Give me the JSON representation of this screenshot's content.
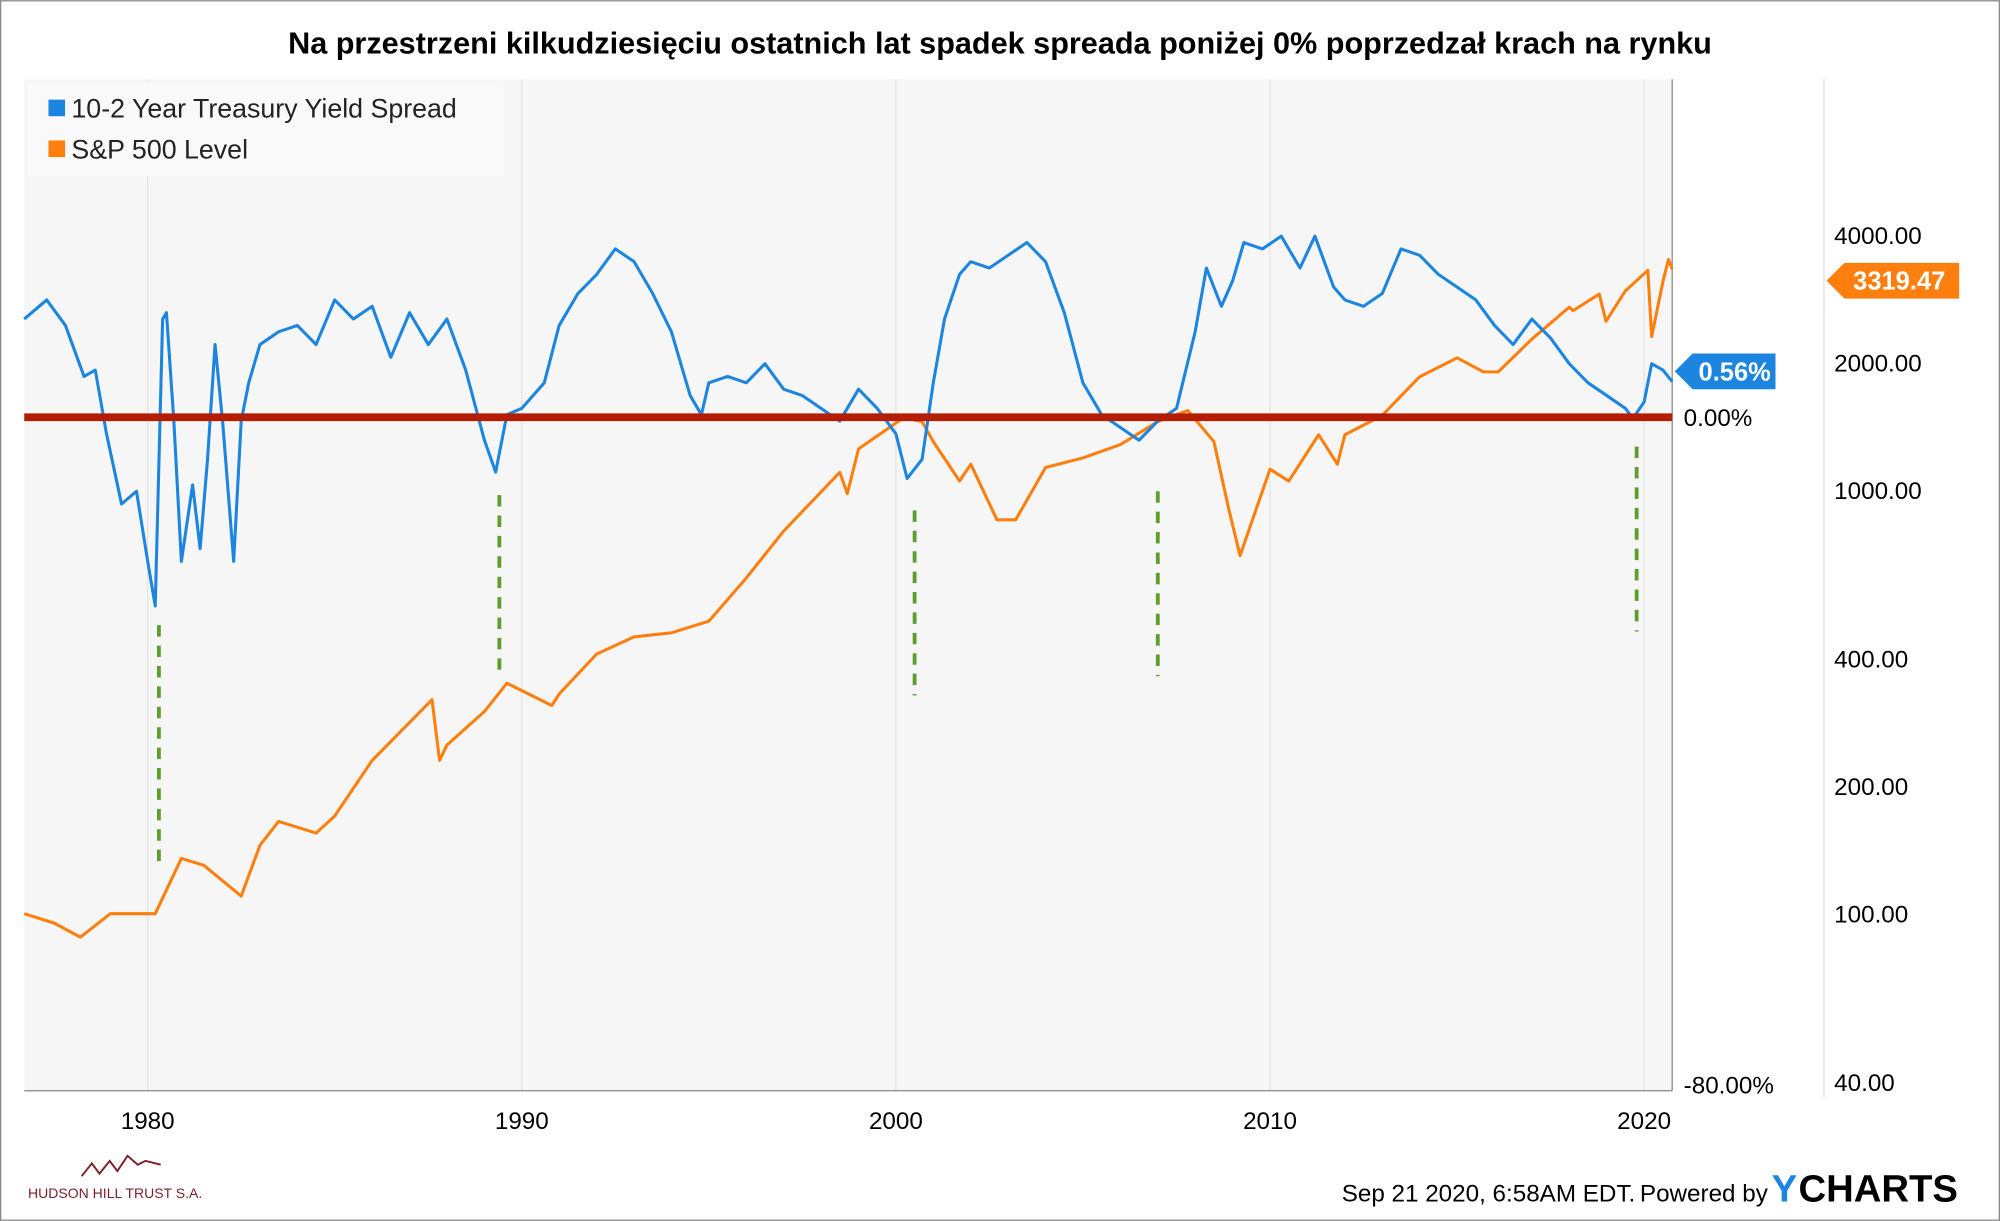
{
  "chart_data": {
    "type": "line",
    "title": "Na przestrzeni kilkudziesięciu ostatnich lat spadek spreada poniżej 0% poprzedzał krach na rynku",
    "x_ticks": [
      "1980",
      "1990",
      "2000",
      "2010",
      "2020"
    ],
    "xlim": [
      1976.7,
      2020.75
    ],
    "left_axis_ticks": [
      "0.00%",
      "-80.00%"
    ],
    "right_axis_ticks": [
      "4000.00",
      "2000.00",
      "1000.00",
      "400.00",
      "200.00",
      "100.00",
      "40.00"
    ],
    "right_axis_scale": "log",
    "legend_position": "top-left",
    "series": [
      {
        "name": "10-2 Year Treasury Yield Spread",
        "color": "#1b85e0",
        "axis": "left",
        "last_label": "0.56%",
        "x": [
          1976.7,
          1977.3,
          1977.8,
          1978.3,
          1978.6,
          1978.9,
          1979.3,
          1979.7,
          1980.0,
          1980.2,
          1980.4,
          1980.5,
          1980.7,
          1980.9,
          1981.2,
          1981.4,
          1981.6,
          1981.8,
          1982.0,
          1982.3,
          1982.5,
          1982.7,
          1983.0,
          1983.5,
          1984.0,
          1984.5,
          1985.0,
          1985.5,
          1986.0,
          1986.5,
          1987.0,
          1987.5,
          1988.0,
          1988.5,
          1989.0,
          1989.3,
          1989.6,
          1990.0,
          1990.6,
          1991.0,
          1991.5,
          1992.0,
          1992.5,
          1993.0,
          1993.5,
          1994.0,
          1994.5,
          1994.8,
          1995.0,
          1995.5,
          1996.0,
          1996.5,
          1997.0,
          1997.5,
          1998.0,
          1998.5,
          1999.0,
          1999.5,
          2000.0,
          2000.3,
          2000.7,
          2001.0,
          2001.3,
          2001.7,
          2002.0,
          2002.5,
          2003.0,
          2003.5,
          2004.0,
          2004.5,
          2005.0,
          2005.5,
          2006.0,
          2006.5,
          2007.0,
          2007.5,
          2008.0,
          2008.3,
          2008.7,
          2009.0,
          2009.3,
          2009.8,
          2010.3,
          2010.8,
          2011.2,
          2011.7,
          2012.0,
          2012.5,
          2013.0,
          2013.5,
          2014.0,
          2014.5,
          2015.0,
          2015.5,
          2016.0,
          2016.5,
          2017.0,
          2017.5,
          2018.0,
          2018.5,
          2019.0,
          2019.5,
          2019.7,
          2020.0,
          2020.2,
          2020.5,
          2020.75
        ],
        "values": [
          1.54,
          1.84,
          1.44,
          0.64,
          0.74,
          -0.26,
          -1.36,
          -1.16,
          -2.26,
          -2.96,
          1.54,
          1.64,
          -0.06,
          -2.26,
          -1.06,
          -2.06,
          -0.66,
          1.14,
          -0.06,
          -2.26,
          -0.06,
          0.54,
          1.14,
          1.34,
          1.44,
          1.14,
          1.84,
          1.54,
          1.74,
          0.94,
          1.64,
          1.14,
          1.54,
          0.74,
          -0.36,
          -0.86,
          0.04,
          0.14,
          0.54,
          1.44,
          1.94,
          2.24,
          2.64,
          2.44,
          1.94,
          1.34,
          0.34,
          0.04,
          0.54,
          0.64,
          0.54,
          0.84,
          0.44,
          0.34,
          0.14,
          -0.06,
          0.44,
          0.14,
          -0.26,
          -0.96,
          -0.66,
          0.54,
          1.54,
          2.24,
          2.44,
          2.34,
          2.54,
          2.74,
          2.44,
          1.64,
          0.54,
          0.04,
          -0.16,
          -0.36,
          -0.06,
          0.14,
          1.34,
          2.34,
          1.74,
          2.14,
          2.74,
          2.64,
          2.84,
          2.34,
          2.84,
          2.04,
          1.84,
          1.74,
          1.94,
          2.64,
          2.54,
          2.24,
          2.04,
          1.84,
          1.44,
          1.14,
          1.54,
          1.24,
          0.84,
          0.54,
          0.34,
          0.14,
          -0.02,
          0.24,
          0.84,
          0.74,
          0.56
        ]
      },
      {
        "name": "S&P 500 Level",
        "color": "#ff7f0e",
        "axis": "right",
        "last_label": "3319.47",
        "x": [
          1976.7,
          1977.5,
          1978.2,
          1979.0,
          1980.2,
          1980.9,
          1981.5,
          1982.5,
          1983.0,
          1983.5,
          1984.5,
          1985.0,
          1986.0,
          1987.6,
          1987.8,
          1988.0,
          1989.0,
          1989.6,
          1990.8,
          1991.0,
          1992.0,
          1993.0,
          1994.0,
          1995.0,
          1996.0,
          1997.0,
          1998.5,
          1998.7,
          1999.0,
          2000.2,
          2000.7,
          2001.0,
          2001.7,
          2002.0,
          2002.7,
          2003.2,
          2004.0,
          2005.0,
          2006.0,
          2007.0,
          2007.8,
          2008.5,
          2008.9,
          2009.2,
          2010.0,
          2010.5,
          2011.3,
          2011.8,
          2012.0,
          2013.0,
          2014.0,
          2015.0,
          2015.7,
          2016.1,
          2017.0,
          2018.0,
          2018.1,
          2018.8,
          2018.98,
          2019.5,
          2020.1,
          2020.2,
          2020.5,
          2020.65,
          2020.75
        ],
        "values": [
          100,
          95,
          88,
          100,
          100,
          135,
          130,
          110,
          145,
          165,
          155,
          170,
          230,
          320,
          230,
          250,
          300,
          350,
          310,
          330,
          410,
          450,
          460,
          490,
          620,
          800,
          1100,
          980,
          1250,
          1480,
          1450,
          1300,
          1050,
          1150,
          850,
          850,
          1130,
          1190,
          1280,
          1450,
          1540,
          1300,
          900,
          700,
          1120,
          1050,
          1350,
          1150,
          1350,
          1500,
          1850,
          2050,
          1900,
          1900,
          2270,
          2700,
          2650,
          2900,
          2500,
          2950,
          3300,
          2300,
          3100,
          3500,
          3319.47
        ]
      }
    ],
    "reference_line": {
      "value": 0,
      "color": "#b41d00"
    },
    "inversion_markers": [
      1980.3,
      1989.4,
      2000.5,
      2007.0,
      2019.8
    ]
  },
  "footer": {
    "logo_text": "HUDSON HILL TRUST S.A.",
    "timestamp": "Sep 21 2020, 6:58AM EDT.",
    "powered_by": "Powered by",
    "brand_y": "Y",
    "brand_rest": "CHARTS"
  }
}
